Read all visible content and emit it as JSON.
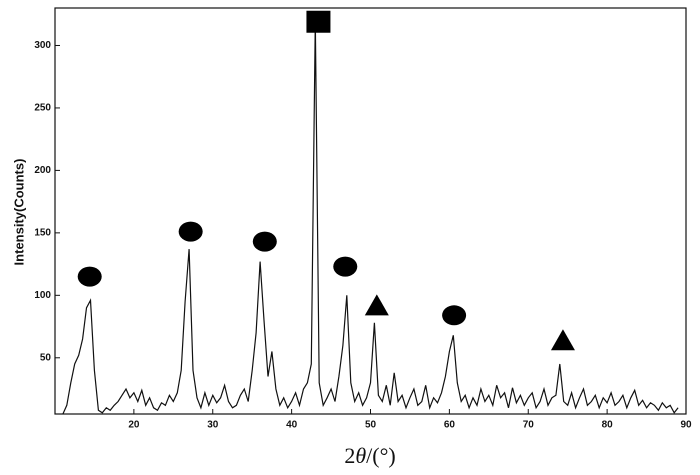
{
  "chart_data": {
    "type": "line",
    "x_label_prefix": "2",
    "x_label_symbol": "θ",
    "x_label_suffix": "/(°)",
    "y_label": "Intensity(Counts)",
    "x": [
      11,
      11.5,
      12,
      12.5,
      13,
      13.5,
      14,
      14.5,
      15,
      15.5,
      16,
      16.5,
      17,
      17.5,
      18,
      18.5,
      19,
      19.5,
      20,
      20.5,
      21,
      21.5,
      22,
      22.5,
      23,
      23.5,
      24,
      24.5,
      25,
      25.5,
      26,
      26.5,
      27,
      27.5,
      28,
      28.5,
      29,
      29.5,
      30,
      30.5,
      31,
      31.5,
      32,
      32.5,
      33,
      33.5,
      34,
      34.5,
      35,
      35.5,
      36,
      36.5,
      37,
      37.5,
      38,
      38.5,
      39,
      39.5,
      40,
      40.5,
      41,
      41.5,
      42,
      42.5,
      43,
      43.5,
      44,
      44.5,
      45,
      45.5,
      46,
      46.5,
      47,
      47.5,
      48,
      48.5,
      49,
      49.5,
      50,
      50.5,
      51,
      51.5,
      52,
      52.5,
      53,
      53.5,
      54,
      54.5,
      55,
      55.5,
      56,
      56.5,
      57,
      57.5,
      58,
      58.5,
      59,
      59.5,
      60,
      60.5,
      61,
      61.5,
      62,
      62.5,
      63,
      63.5,
      64,
      64.5,
      65,
      65.5,
      66,
      66.5,
      67,
      67.5,
      68,
      68.5,
      69,
      69.5,
      70,
      70.5,
      71,
      71.5,
      72,
      72.5,
      73,
      73.5,
      74,
      74.5,
      75,
      75.5,
      76,
      76.5,
      77,
      77.5,
      78,
      78.5,
      79,
      79.5,
      80,
      80.5,
      81,
      81.5,
      82,
      82.5,
      83,
      83.5,
      84,
      84.5,
      85,
      85.5,
      86,
      86.5,
      87,
      87.5,
      88,
      88.5,
      89
    ],
    "values": [
      5,
      12,
      30,
      45,
      52,
      65,
      90,
      96,
      40,
      8,
      6,
      10,
      8,
      12,
      15,
      20,
      25,
      18,
      22,
      15,
      24,
      12,
      18,
      10,
      8,
      14,
      12,
      20,
      15,
      22,
      40,
      95,
      137,
      40,
      18,
      10,
      22,
      12,
      20,
      14,
      18,
      28,
      15,
      10,
      12,
      20,
      25,
      15,
      40,
      70,
      127,
      80,
      35,
      55,
      25,
      12,
      18,
      10,
      15,
      22,
      12,
      25,
      30,
      45,
      320,
      30,
      12,
      18,
      25,
      15,
      35,
      60,
      100,
      30,
      15,
      22,
      12,
      18,
      30,
      78,
      20,
      15,
      28,
      12,
      38,
      15,
      20,
      10,
      18,
      25,
      12,
      15,
      28,
      10,
      18,
      14,
      22,
      35,
      55,
      68,
      30,
      15,
      20,
      10,
      18,
      12,
      25,
      15,
      20,
      12,
      28,
      18,
      22,
      10,
      26,
      14,
      20,
      12,
      18,
      22,
      10,
      15,
      25,
      12,
      18,
      20,
      45,
      15,
      12,
      22,
      10,
      18,
      25,
      12,
      15,
      20,
      10,
      18,
      14,
      22,
      12,
      15,
      20,
      10,
      18,
      24,
      12,
      16,
      10,
      14,
      12,
      8,
      14,
      10,
      12,
      6,
      10
    ],
    "color": "#111111",
    "xlim": [
      10,
      90
    ],
    "xticks": [
      20,
      30,
      40,
      50,
      60,
      70,
      80,
      90
    ],
    "ylim": [
      5,
      330
    ],
    "yticks": [
      50,
      100,
      150,
      200,
      250,
      300
    ],
    "markers": [
      {
        "shape": "circle",
        "x": 14.4,
        "y": 115
      },
      {
        "shape": "circle",
        "x": 27.2,
        "y": 151
      },
      {
        "shape": "circle",
        "x": 36.6,
        "y": 143
      },
      {
        "shape": "square",
        "x": 43.4,
        "y": 319
      },
      {
        "shape": "circle",
        "x": 46.8,
        "y": 123
      },
      {
        "shape": "triangle",
        "x": 50.8,
        "y": 92
      },
      {
        "shape": "circle",
        "x": 60.6,
        "y": 84
      },
      {
        "shape": "triangle",
        "x": 74.4,
        "y": 64
      }
    ]
  }
}
